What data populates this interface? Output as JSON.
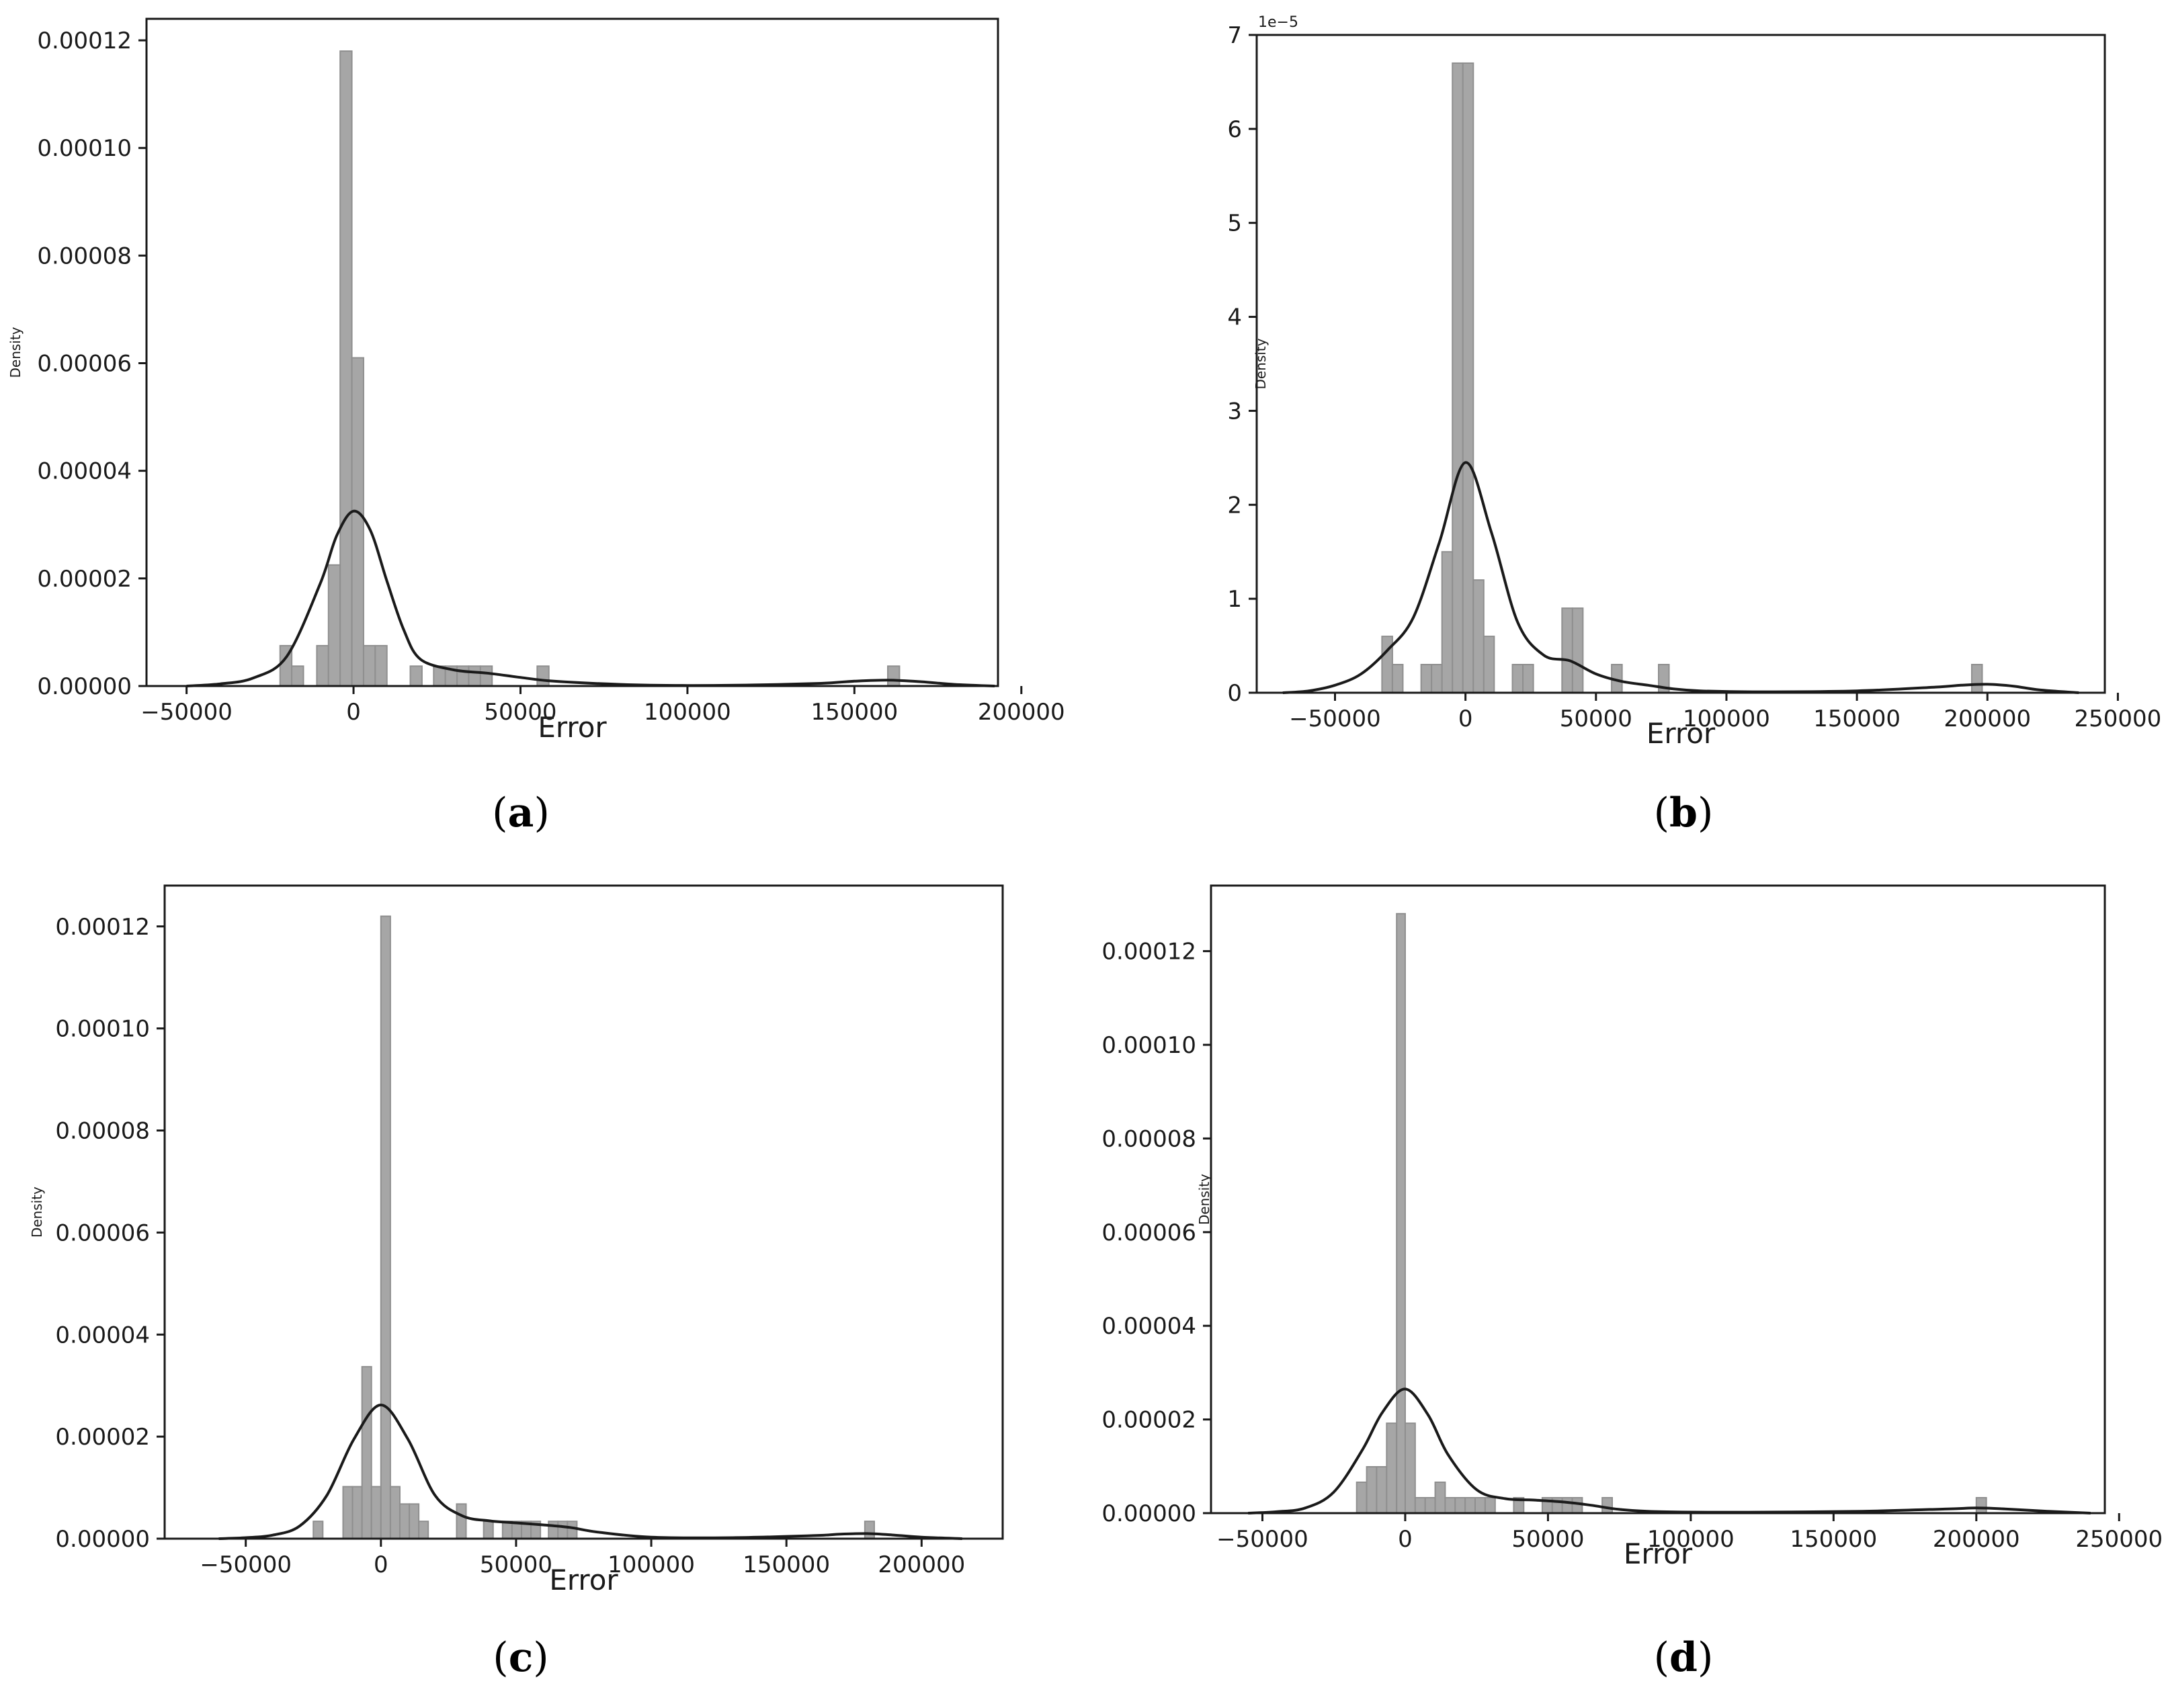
{
  "chart_data": [
    {
      "type": "histogram",
      "caption": "a",
      "xlabel": "Error",
      "ylabel": "Density",
      "xlim": [
        -62000,
        193000
      ],
      "ylim": [
        0,
        0.000124
      ],
      "xticks": [
        -50000,
        0,
        50000,
        100000,
        150000,
        200000
      ],
      "xtick_labels": [
        "−50000",
        "0",
        "50000",
        "100000",
        "150000",
        "200000"
      ],
      "yticks": [
        0,
        2e-05,
        4e-05,
        6e-05,
        8e-05,
        0.0001,
        0.00012
      ],
      "ytick_labels": [
        "0.00000",
        "0.00002",
        "0.00004",
        "0.00006",
        "0.00008",
        "0.00010",
        "0.00012"
      ],
      "offset_label": "",
      "bins": [
        {
          "x0": -22000,
          "x1": -18500,
          "density": 7.5e-06
        },
        {
          "x0": -18500,
          "x1": -15000,
          "density": 3.7e-06
        },
        {
          "x0": -11000,
          "x1": -7500,
          "density": 7.5e-06
        },
        {
          "x0": -7500,
          "x1": -4000,
          "density": 2.25e-05
        },
        {
          "x0": -4000,
          "x1": -500,
          "density": 0.000118
        },
        {
          "x0": -500,
          "x1": 3000,
          "density": 6.1e-05
        },
        {
          "x0": 3000,
          "x1": 6500,
          "density": 7.5e-06
        },
        {
          "x0": 6500,
          "x1": 10000,
          "density": 7.5e-06
        },
        {
          "x0": 17000,
          "x1": 20500,
          "density": 3.7e-06
        },
        {
          "x0": 24000,
          "x1": 27500,
          "density": 3.7e-06
        },
        {
          "x0": 27500,
          "x1": 31000,
          "density": 3.7e-06
        },
        {
          "x0": 31000,
          "x1": 34500,
          "density": 3.7e-06
        },
        {
          "x0": 34500,
          "x1": 38000,
          "density": 3.7e-06
        },
        {
          "x0": 38000,
          "x1": 41500,
          "density": 3.7e-06
        },
        {
          "x0": 55000,
          "x1": 58500,
          "density": 3.7e-06
        },
        {
          "x0": 160000,
          "x1": 163500,
          "density": 3.7e-06
        }
      ],
      "kde": {
        "x": [
          -50000,
          -40000,
          -30000,
          -20000,
          -10000,
          -5000,
          0,
          5000,
          10000,
          15000,
          20000,
          30000,
          40000,
          50000,
          60000,
          80000,
          100000,
          120000,
          140000,
          150000,
          160000,
          170000,
          180000,
          192000
        ],
        "y": [
          0,
          4e-07,
          1.5e-06,
          5.5e-06,
          1.9e-05,
          2.8e-05,
          3.25e-05,
          2.9e-05,
          1.95e-05,
          1.05e-05,
          5e-06,
          3e-06,
          2.4e-06,
          1.6e-06,
          9e-07,
          3e-07,
          1e-07,
          2e-07,
          5e-07,
          9e-07,
          1.1e-06,
          8e-07,
          3e-07,
          0
        ]
      }
    },
    {
      "type": "histogram",
      "caption": "b",
      "xlabel": "Error",
      "ylabel": "Density",
      "xlim": [
        -80000,
        245000
      ],
      "ylim": [
        0,
        7e-05
      ],
      "xticks": [
        -50000,
        0,
        50000,
        100000,
        150000,
        200000,
        250000
      ],
      "xtick_labels": [
        "−50000",
        "0",
        "50000",
        "100000",
        "150000",
        "200000",
        "250000"
      ],
      "yticks": [
        0,
        1e-05,
        2e-05,
        3e-05,
        4e-05,
        5e-05,
        6e-05,
        7e-05
      ],
      "ytick_labels": [
        "0",
        "1",
        "2",
        "3",
        "4",
        "5",
        "6",
        "7"
      ],
      "offset_label": "1e−5",
      "bins": [
        {
          "x0": -32000,
          "x1": -28000,
          "density": 6e-06
        },
        {
          "x0": -28000,
          "x1": -24000,
          "density": 3e-06
        },
        {
          "x0": -17000,
          "x1": -13000,
          "density": 3e-06
        },
        {
          "x0": -13000,
          "x1": -9000,
          "density": 3e-06
        },
        {
          "x0": -9000,
          "x1": -5000,
          "density": 1.5e-05
        },
        {
          "x0": -5000,
          "x1": -1000,
          "density": 6.7e-05
        },
        {
          "x0": -1000,
          "x1": 3000,
          "density": 6.7e-05
        },
        {
          "x0": 3000,
          "x1": 7000,
          "density": 1.2e-05
        },
        {
          "x0": 7000,
          "x1": 11000,
          "density": 6e-06
        },
        {
          "x0": 18000,
          "x1": 22000,
          "density": 3e-06
        },
        {
          "x0": 22000,
          "x1": 26000,
          "density": 3e-06
        },
        {
          "x0": 37000,
          "x1": 41000,
          "density": 9e-06
        },
        {
          "x0": 41000,
          "x1": 45000,
          "density": 9e-06
        },
        {
          "x0": 56000,
          "x1": 60000,
          "density": 3e-06
        },
        {
          "x0": 74000,
          "x1": 78000,
          "density": 3e-06
        },
        {
          "x0": 194000,
          "x1": 198000,
          "density": 3e-06
        }
      ],
      "kde": {
        "x": [
          -70000,
          -60000,
          -50000,
          -40000,
          -30000,
          -20000,
          -10000,
          0,
          10000,
          20000,
          30000,
          40000,
          50000,
          60000,
          70000,
          80000,
          90000,
          110000,
          150000,
          180000,
          190000,
          200000,
          210000,
          220000,
          235000
        ],
        "y": [
          0,
          2e-07,
          8e-07,
          2e-06,
          4.5e-06,
          8e-06,
          1.6e-05,
          2.45e-05,
          1.7e-05,
          7.5e-06,
          4e-06,
          3.4e-06,
          2e-06,
          1.2e-06,
          8e-07,
          4e-07,
          2e-07,
          1e-07,
          2e-07,
          6e-07,
          8e-07,
          9e-07,
          7e-07,
          3e-07,
          0
        ]
      }
    },
    {
      "type": "histogram",
      "caption": "c",
      "xlabel": "Error",
      "ylabel": "Density",
      "xlim": [
        -80000,
        230000
      ],
      "ylim": [
        0,
        0.000128
      ],
      "xticks": [
        -50000,
        0,
        50000,
        100000,
        150000,
        200000
      ],
      "xtick_labels": [
        "−50000",
        "0",
        "50000",
        "100000",
        "150000",
        "200000"
      ],
      "yticks": [
        0,
        2e-05,
        4e-05,
        6e-05,
        8e-05,
        0.0001,
        0.00012
      ],
      "ytick_labels": [
        "0.00000",
        "0.00002",
        "0.00004",
        "0.00006",
        "0.00008",
        "0.00010",
        "0.00012"
      ],
      "offset_label": "",
      "bins": [
        {
          "x0": -25000,
          "x1": -21500,
          "density": 3.4e-06
        },
        {
          "x0": -14000,
          "x1": -10500,
          "density": 1.02e-05
        },
        {
          "x0": -10500,
          "x1": -7000,
          "density": 1.02e-05
        },
        {
          "x0": -7000,
          "x1": -3500,
          "density": 3.37e-05
        },
        {
          "x0": -3500,
          "x1": 0,
          "density": 1.02e-05
        },
        {
          "x0": 0,
          "x1": 3500,
          "density": 0.000122
        },
        {
          "x0": 3500,
          "x1": 7000,
          "density": 1.02e-05
        },
        {
          "x0": 7000,
          "x1": 10500,
          "density": 6.8e-06
        },
        {
          "x0": 10500,
          "x1": 14000,
          "density": 6.8e-06
        },
        {
          "x0": 14000,
          "x1": 17500,
          "density": 3.4e-06
        },
        {
          "x0": 28000,
          "x1": 31500,
          "density": 6.8e-06
        },
        {
          "x0": 38000,
          "x1": 41500,
          "density": 3.4e-06
        },
        {
          "x0": 45000,
          "x1": 48500,
          "density": 3.4e-06
        },
        {
          "x0": 48500,
          "x1": 52000,
          "density": 3.4e-06
        },
        {
          "x0": 52000,
          "x1": 55500,
          "density": 3.4e-06
        },
        {
          "x0": 55500,
          "x1": 59000,
          "density": 3.4e-06
        },
        {
          "x0": 62000,
          "x1": 65500,
          "density": 3.4e-06
        },
        {
          "x0": 65500,
          "x1": 69000,
          "density": 3.4e-06
        },
        {
          "x0": 69000,
          "x1": 72500,
          "density": 3.4e-06
        },
        {
          "x0": 179000,
          "x1": 182500,
          "density": 3.4e-06
        }
      ],
      "kde": {
        "x": [
          -60000,
          -50000,
          -40000,
          -30000,
          -20000,
          -10000,
          0,
          10000,
          20000,
          30000,
          40000,
          50000,
          60000,
          70000,
          80000,
          100000,
          130000,
          160000,
          170000,
          180000,
          190000,
          200000,
          215000
        ],
        "y": [
          0,
          2e-07,
          7e-07,
          2.5e-06,
          8.5e-06,
          1.95e-05,
          2.62e-05,
          1.95e-05,
          8.5e-06,
          4.5e-06,
          3.5e-06,
          3.1e-06,
          2.7e-06,
          2.2e-06,
          1.3e-06,
          3e-07,
          2e-07,
          6e-07,
          9e-07,
          1e-06,
          7e-07,
          3e-07,
          0
        ]
      }
    },
    {
      "type": "histogram",
      "caption": "d",
      "xlabel": "Error",
      "ylabel": "Density",
      "xlim": [
        -68000,
        245000
      ],
      "ylim": [
        0,
        0.000134
      ],
      "xticks": [
        -50000,
        0,
        50000,
        100000,
        150000,
        200000,
        250000
      ],
      "xtick_labels": [
        "−50000",
        "0",
        "50000",
        "100000",
        "150000",
        "200000",
        "250000"
      ],
      "yticks": [
        0,
        2e-05,
        4e-05,
        6e-05,
        8e-05,
        0.0001,
        0.00012
      ],
      "ytick_labels": [
        "0.00000",
        "0.00002",
        "0.00004",
        "0.00006",
        "0.00008",
        "0.00010",
        "0.00012"
      ],
      "offset_label": "",
      "bins": [
        {
          "x0": -17000,
          "x1": -13500,
          "density": 6.6e-06
        },
        {
          "x0": -13500,
          "x1": -10000,
          "density": 9.9e-06
        },
        {
          "x0": -10000,
          "x1": -6500,
          "density": 9.9e-06
        },
        {
          "x0": -6500,
          "x1": -3000,
          "density": 1.92e-05
        },
        {
          "x0": -3000,
          "x1": 0,
          "density": 0.000128
        },
        {
          "x0": 0,
          "x1": 3500,
          "density": 1.92e-05
        },
        {
          "x0": 3500,
          "x1": 7000,
          "density": 3.3e-06
        },
        {
          "x0": 7000,
          "x1": 10500,
          "density": 3.3e-06
        },
        {
          "x0": 10500,
          "x1": 14000,
          "density": 6.6e-06
        },
        {
          "x0": 14000,
          "x1": 17500,
          "density": 3.3e-06
        },
        {
          "x0": 17500,
          "x1": 21000,
          "density": 3.3e-06
        },
        {
          "x0": 21000,
          "x1": 24500,
          "density": 3.3e-06
        },
        {
          "x0": 24500,
          "x1": 28000,
          "density": 3.3e-06
        },
        {
          "x0": 28000,
          "x1": 31500,
          "density": 3.3e-06
        },
        {
          "x0": 38000,
          "x1": 41500,
          "density": 3.3e-06
        },
        {
          "x0": 48000,
          "x1": 51500,
          "density": 3.3e-06
        },
        {
          "x0": 51500,
          "x1": 55000,
          "density": 3.3e-06
        },
        {
          "x0": 55000,
          "x1": 58500,
          "density": 3.3e-06
        },
        {
          "x0": 58500,
          "x1": 62000,
          "density": 3.3e-06
        },
        {
          "x0": 69000,
          "x1": 72500,
          "density": 3.3e-06
        },
        {
          "x0": 200000,
          "x1": 203500,
          "density": 3.3e-06
        }
      ],
      "kde": {
        "x": [
          -55000,
          -45000,
          -35000,
          -25000,
          -15000,
          -8000,
          0,
          8000,
          15000,
          25000,
          35000,
          45000,
          55000,
          65000,
          75000,
          90000,
          120000,
          160000,
          190000,
          200000,
          210000,
          225000,
          240000
        ],
        "y": [
          0,
          3e-07,
          1.1e-06,
          4.5e-06,
          1.35e-05,
          2.15e-05,
          2.65e-05,
          2.1e-05,
          1.25e-05,
          5e-06,
          3.1e-06,
          2.8e-06,
          2.4e-06,
          1.7e-06,
          8e-07,
          3e-07,
          2e-07,
          4e-07,
          9e-07,
          1.1e-06,
          9e-07,
          4e-07,
          0
        ]
      }
    }
  ]
}
